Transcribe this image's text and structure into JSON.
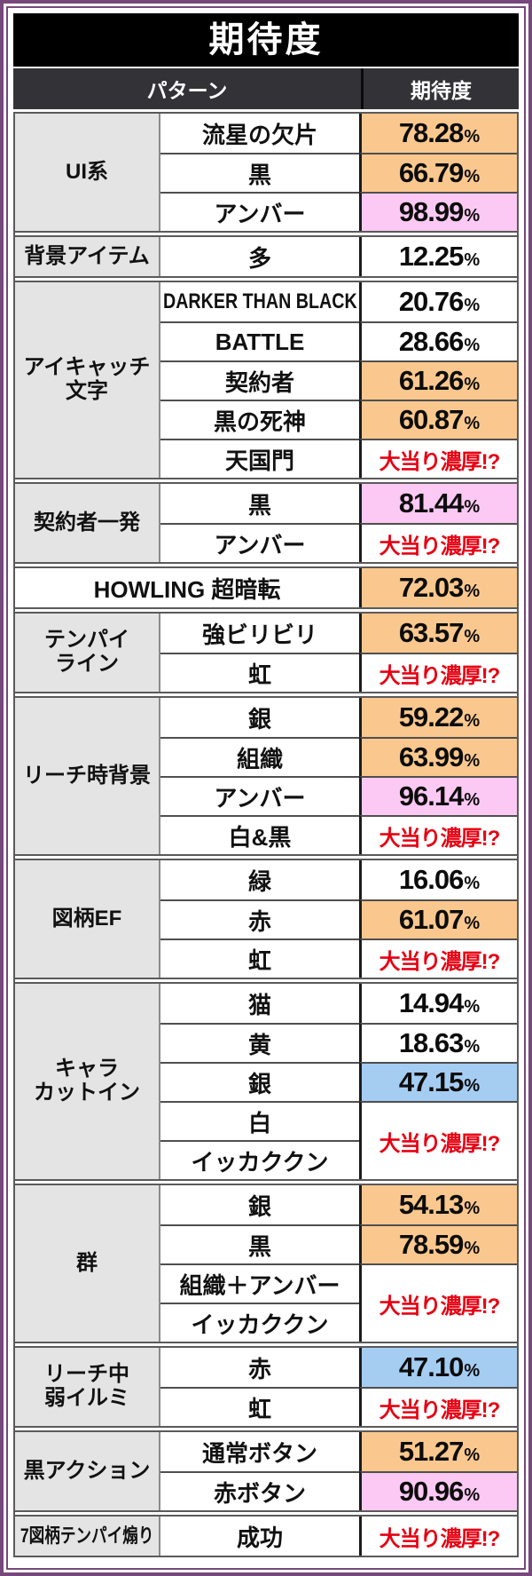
{
  "chart_data": {
    "type": "table",
    "title": "期待度",
    "header": {
      "pattern_label": "パターン",
      "expectation_label": "期待度"
    },
    "percent_sign": "%",
    "jackpot_label": "大当り濃厚!?",
    "sections": [
      {
        "group": "UI系",
        "rows": [
          {
            "pattern": "流星の欠片",
            "value": "78.28",
            "highlight": "orange"
          },
          {
            "pattern": "黒",
            "value": "66.79",
            "highlight": "orange"
          },
          {
            "pattern": "アンバー",
            "value": "98.99",
            "highlight": "pink"
          }
        ]
      },
      {
        "group": "背景アイテム",
        "rows": [
          {
            "pattern": "多",
            "value": "12.25",
            "highlight": "white"
          }
        ]
      },
      {
        "group": "アイキャッチ\n文字",
        "rows": [
          {
            "pattern": "DARKER THAN BLACK",
            "value": "20.76",
            "highlight": "white"
          },
          {
            "pattern": "BATTLE",
            "value": "28.66",
            "highlight": "white"
          },
          {
            "pattern": "契約者",
            "value": "61.26",
            "highlight": "orange"
          },
          {
            "pattern": "黒の死神",
            "value": "60.87",
            "highlight": "orange"
          },
          {
            "pattern": "天国門",
            "value": "大当り濃厚!?",
            "highlight": "white",
            "jackpot": true
          }
        ]
      },
      {
        "group": "契約者一発",
        "rows": [
          {
            "pattern": "黒",
            "value": "81.44",
            "highlight": "pink"
          },
          {
            "pattern": "アンバー",
            "value": "大当り濃厚!?",
            "highlight": "white",
            "jackpot": true
          }
        ]
      },
      {
        "group": "",
        "rows": [
          {
            "pattern": "HOWLING 超暗転",
            "value": "72.03",
            "highlight": "orange",
            "full_width": true
          }
        ]
      },
      {
        "group": "テンパイ\nライン",
        "rows": [
          {
            "pattern": "強ビリビリ",
            "value": "63.57",
            "highlight": "orange"
          },
          {
            "pattern": "虹",
            "value": "大当り濃厚!?",
            "highlight": "white",
            "jackpot": true
          }
        ]
      },
      {
        "group": "リーチ時背景",
        "rows": [
          {
            "pattern": "銀",
            "value": "59.22",
            "highlight": "orange"
          },
          {
            "pattern": "組織",
            "value": "63.99",
            "highlight": "orange"
          },
          {
            "pattern": "アンバー",
            "value": "96.14",
            "highlight": "pink"
          },
          {
            "pattern": "白&黒",
            "value": "大当り濃厚!?",
            "highlight": "white",
            "jackpot": true
          }
        ]
      },
      {
        "group": "図柄EF",
        "rows": [
          {
            "pattern": "緑",
            "value": "16.06",
            "highlight": "white"
          },
          {
            "pattern": "赤",
            "value": "61.07",
            "highlight": "orange"
          },
          {
            "pattern": "虹",
            "value": "大当り濃厚!?",
            "highlight": "white",
            "jackpot": true
          }
        ]
      },
      {
        "group": "キャラ\nカットイン",
        "rows": [
          {
            "pattern": "猫",
            "value": "14.94",
            "highlight": "white"
          },
          {
            "pattern": "黄",
            "value": "18.63",
            "highlight": "white"
          },
          {
            "pattern": "銀",
            "value": "47.15",
            "highlight": "blue"
          },
          {
            "pattern": "白",
            "value": "大当り濃厚!?",
            "highlight": "white",
            "jackpot": true,
            "merged_rows": 2
          },
          {
            "pattern": "イッカククン",
            "merged_into_above": true
          }
        ]
      },
      {
        "group": "群",
        "rows": [
          {
            "pattern": "銀",
            "value": "54.13",
            "highlight": "orange"
          },
          {
            "pattern": "黒",
            "value": "78.59",
            "highlight": "orange"
          },
          {
            "pattern": "組織＋アンバー",
            "value": "大当り濃厚!?",
            "highlight": "white",
            "jackpot": true,
            "merged_rows": 2
          },
          {
            "pattern": "イッカククン",
            "merged_into_above": true
          }
        ]
      },
      {
        "group": "リーチ中\n弱イルミ",
        "rows": [
          {
            "pattern": "赤",
            "value": "47.10",
            "highlight": "blue"
          },
          {
            "pattern": "虹",
            "value": "大当り濃厚!?",
            "highlight": "white",
            "jackpot": true
          }
        ]
      },
      {
        "group": "黒アクション",
        "rows": [
          {
            "pattern": "通常ボタン",
            "value": "51.27",
            "highlight": "orange"
          },
          {
            "pattern": "赤ボタン",
            "value": "90.96",
            "highlight": "pink"
          }
        ]
      },
      {
        "group": "7図柄テンパイ煽り",
        "rows": [
          {
            "pattern": "成功",
            "value": "大当り濃厚!?",
            "highlight": "white",
            "jackpot": true
          }
        ]
      }
    ],
    "colors": {
      "highlight_orange": "#FAC88E",
      "highlight_pink": "#FBC9F3",
      "highlight_blue": "#A5CDF2",
      "jackpot_red": "#E60012",
      "title_bg": "#000000",
      "header_bg": "#333237",
      "group_bg": "#E4E4E4",
      "frame_purple": "#77487B"
    }
  }
}
